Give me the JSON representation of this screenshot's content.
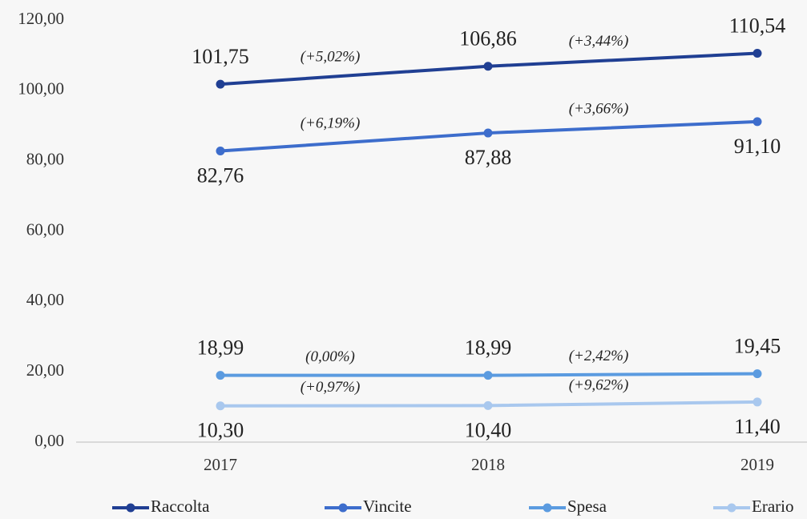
{
  "chart_data": {
    "type": "line",
    "categories": [
      "2017",
      "2018",
      "2019"
    ],
    "series": [
      {
        "name": "Raccolta",
        "color": "#203f93",
        "values": [
          101.75,
          106.86,
          110.54
        ],
        "value_labels": [
          "101,75",
          "106,86",
          "110,54"
        ],
        "changes": [
          "(+5,02%)",
          "(+3,44%)"
        ]
      },
      {
        "name": "Vincite",
        "color": "#3d6dcc",
        "values": [
          82.76,
          87.88,
          91.1
        ],
        "value_labels": [
          "82,76",
          "87,88",
          "91,10"
        ],
        "changes": [
          "(+6,19%)",
          "(+3,66%)"
        ]
      },
      {
        "name": "Spesa",
        "color": "#5b9be0",
        "values": [
          18.99,
          18.99,
          19.45
        ],
        "value_labels": [
          "18,99",
          "18,99",
          "19,45"
        ],
        "changes": [
          "(0,00%)",
          "(+2,42%)"
        ]
      },
      {
        "name": "Erario",
        "color": "#a9c8ee",
        "values": [
          10.3,
          10.4,
          11.4
        ],
        "value_labels": [
          "10,30",
          "10,40",
          "11,40"
        ],
        "changes": [
          "(+0,97%)",
          "(+9,62%)"
        ]
      }
    ],
    "ylim": [
      0,
      120
    ],
    "yticks": [
      {
        "value": 0,
        "label": "0,00"
      },
      {
        "value": 20,
        "label": "20,00"
      },
      {
        "value": 40,
        "label": "40,00"
      },
      {
        "value": 60,
        "label": "60,00"
      },
      {
        "value": 80,
        "label": "80,00"
      },
      {
        "value": 100,
        "label": "100,00"
      },
      {
        "value": 120,
        "label": "120,00"
      }
    ],
    "legend": "bottom"
  }
}
